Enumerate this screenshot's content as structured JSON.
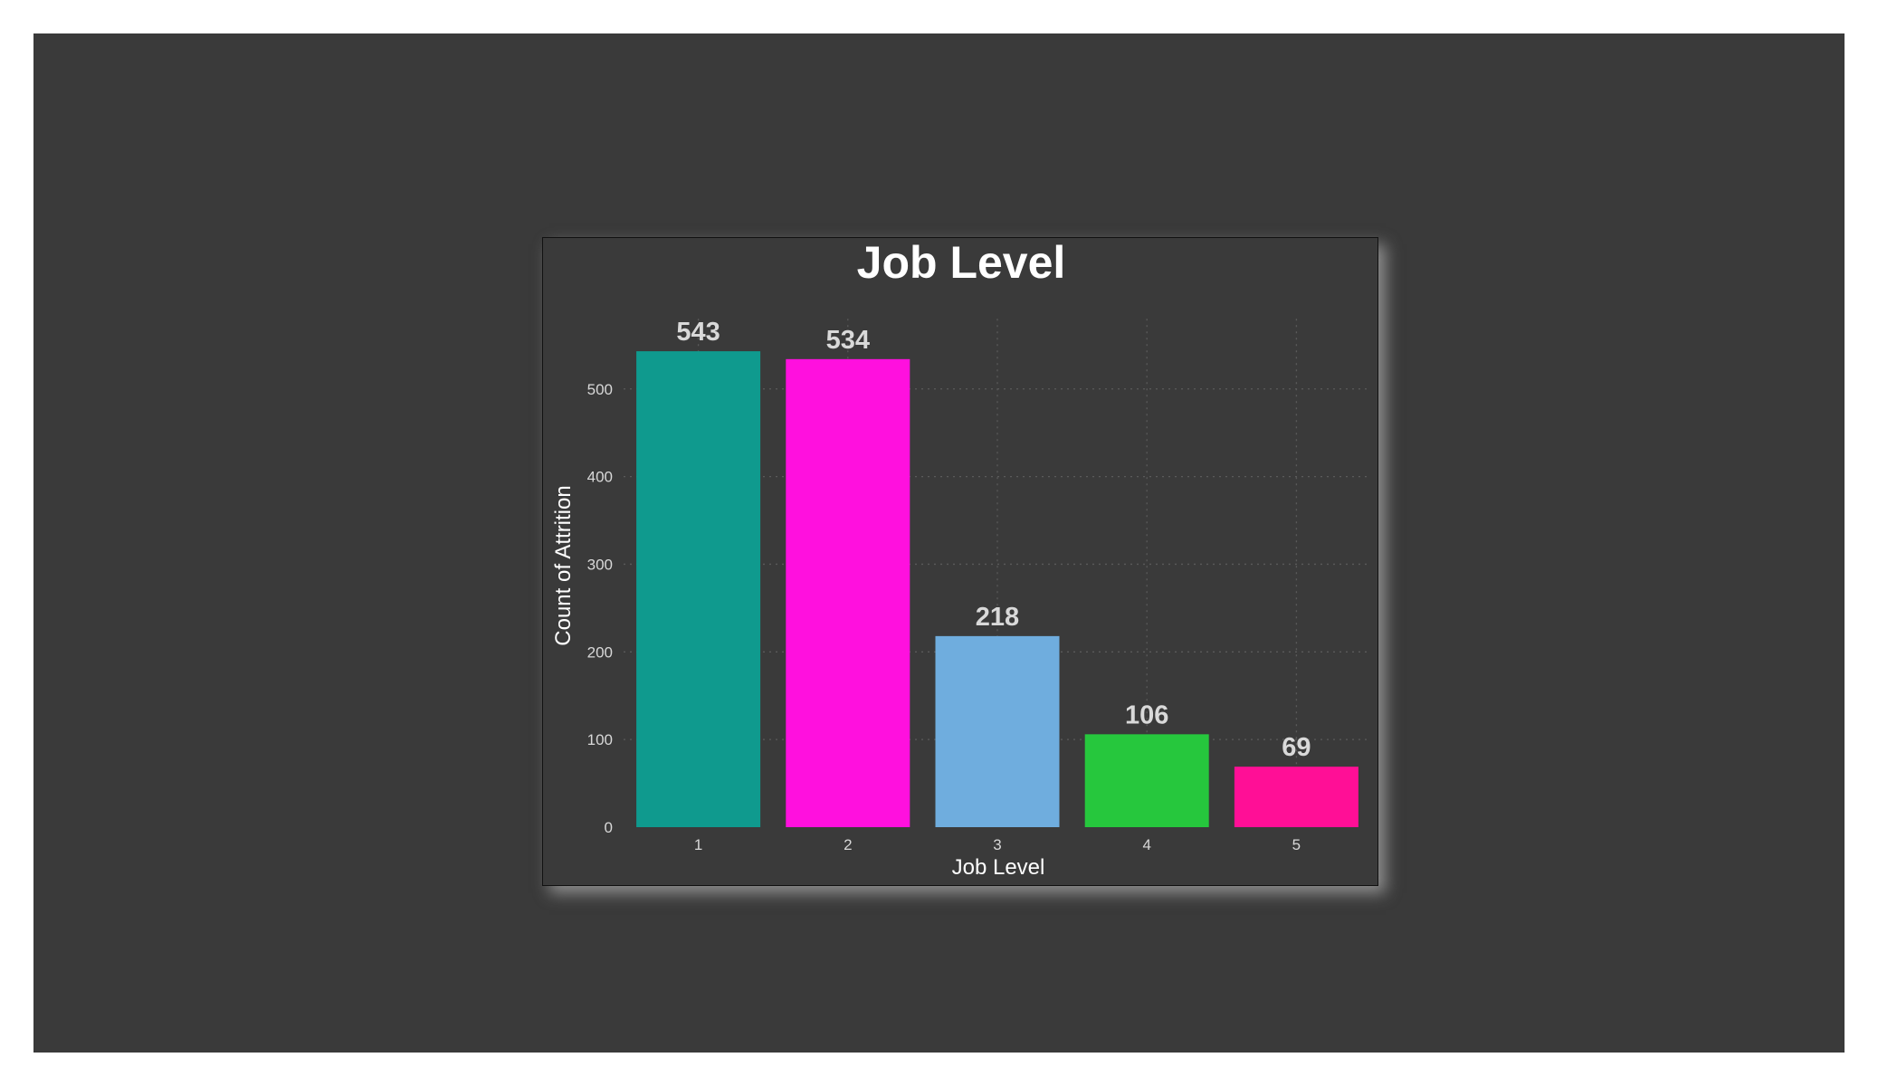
{
  "chart_data": {
    "type": "bar",
    "title": "Job Level",
    "xlabel": "Job Level",
    "ylabel": "Count of Attrition",
    "categories": [
      "1",
      "2",
      "3",
      "4",
      "5"
    ],
    "values": [
      543,
      534,
      218,
      106,
      69
    ],
    "data_labels": [
      "543",
      "534",
      "218",
      "106",
      "69"
    ],
    "colors": [
      "#0f9a8e",
      "#ff10de",
      "#6fadde",
      "#26c73d",
      "#ff0f96"
    ],
    "ylim": [
      0,
      580
    ],
    "yticks": [
      0,
      100,
      200,
      300,
      400,
      500
    ],
    "grid": true,
    "legend": "none"
  }
}
